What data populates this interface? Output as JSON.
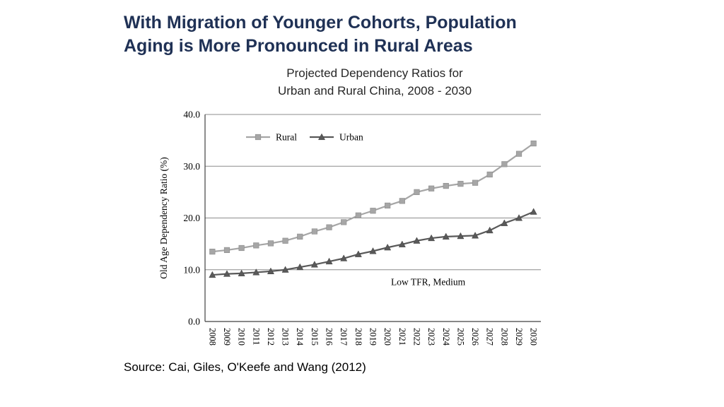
{
  "slide": {
    "title_line1": "With Migration of Younger Cohorts, Population",
    "title_line2": "Aging is More Pronounced in Rural Areas",
    "source": "Source: Cai, Giles, O'Keefe and Wang (2012)"
  },
  "chart": {
    "subtitle_line1": "Projected Dependency Ratios for",
    "subtitle_line2": "Urban and Rural China, 2008 - 2030"
  },
  "colors": {
    "title_text": "#1f3155",
    "rural_series": "#a6a6a6",
    "urban_series": "#595959"
  },
  "chart_data": {
    "type": "line",
    "title": "Projected Dependency Ratios for Urban and Rural China, 2008-2030",
    "xlabel": "",
    "ylabel": "Old Age Dependency Ratio (%)",
    "ylim": [
      0,
      40
    ],
    "yticks": [
      0,
      10,
      20,
      30,
      40
    ],
    "grid": true,
    "legend_position": "top-inside",
    "annotation": "Low TFR, Medium",
    "categories": [
      2008,
      2009,
      2010,
      2011,
      2012,
      2013,
      2014,
      2015,
      2016,
      2017,
      2018,
      2019,
      2020,
      2021,
      2022,
      2023,
      2024,
      2025,
      2026,
      2027,
      2028,
      2029,
      2030
    ],
    "series": [
      {
        "name": "Rural",
        "marker": "square",
        "color": "#a6a6a6",
        "values": [
          13.5,
          13.8,
          14.2,
          14.7,
          15.1,
          15.6,
          16.4,
          17.4,
          18.2,
          19.2,
          20.5,
          21.4,
          22.4,
          23.3,
          25.0,
          25.7,
          26.2,
          26.6,
          26.8,
          28.4,
          30.4,
          32.4,
          34.4
        ]
      },
      {
        "name": "Urban",
        "marker": "triangle",
        "color": "#595959",
        "values": [
          9.0,
          9.2,
          9.3,
          9.5,
          9.7,
          10.0,
          10.5,
          11.0,
          11.6,
          12.2,
          13.0,
          13.6,
          14.3,
          14.9,
          15.6,
          16.1,
          16.4,
          16.5,
          16.6,
          17.6,
          19.0,
          20.0,
          21.2
        ]
      }
    ]
  }
}
